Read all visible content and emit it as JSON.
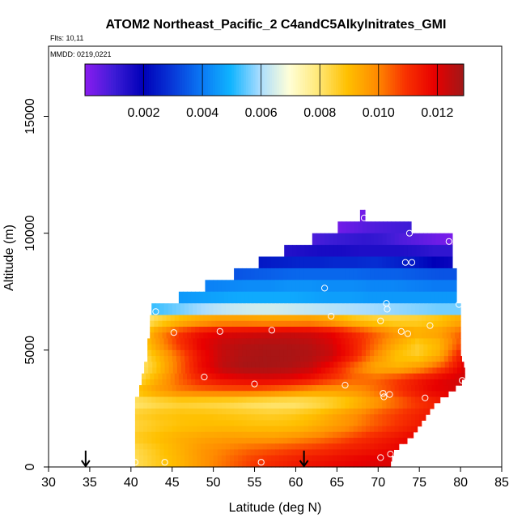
{
  "chart_data": {
    "type": "heatmap",
    "title": "ATOM2 Northeast_Pacific_2 C4andC5Alkylnitrates_GMI",
    "flights_note": "Flts: 10,11",
    "date_note": "MMDD: 0219,0221",
    "xlabel": "Latitude (deg N)",
    "ylabel": "Altitude (m)",
    "xlim": [
      30,
      85
    ],
    "ylim": [
      0,
      18000
    ],
    "x_ticks": [
      30,
      35,
      40,
      45,
      50,
      55,
      60,
      65,
      70,
      75,
      80,
      85
    ],
    "y_ticks": [
      0,
      5000,
      10000,
      15000
    ],
    "colorbar": {
      "min": 0.0,
      "max": 0.0129,
      "ticks": [
        "0.002",
        "0.004",
        "0.006",
        "0.008",
        "0.010",
        "0.012"
      ],
      "tick_values": [
        0.002,
        0.004,
        0.006,
        0.008,
        0.01,
        0.012
      ],
      "colors": [
        "#8a1cf0",
        "#3d1cd6",
        "#0000b8",
        "#0838d8",
        "#0a78f4",
        "#10b4ff",
        "#a8dcff",
        "#ffffd8",
        "#ffe878",
        "#ffc000",
        "#ff8c00",
        "#f83200",
        "#e80000",
        "#a01818"
      ]
    },
    "layers": [
      {
        "alt": 10750,
        "lat_start": 67.8,
        "lat_end": 68.4,
        "values": [
          0.0003
        ]
      },
      {
        "alt": 10250,
        "lat_start": 65.1,
        "lat_end": 74.0,
        "values": [
          0.0003,
          0.0005,
          0.0007,
          0.0008,
          0.0009,
          0.001
        ]
      },
      {
        "alt": 9750,
        "lat_start": 62.0,
        "lat_end": 79.0,
        "values": [
          0.0008,
          0.001,
          0.0011,
          0.0012,
          0.0011,
          0.0008,
          0.0006,
          0.0004,
          0.0002
        ]
      },
      {
        "alt": 9250,
        "lat_start": 58.6,
        "lat_end": 79.0,
        "values": [
          0.0014,
          0.0015,
          0.0016,
          0.0016,
          0.0015,
          0.0015,
          0.0015,
          0.0014,
          0.0012,
          0.0012
        ]
      },
      {
        "alt": 8750,
        "lat_start": 55.5,
        "lat_end": 79.0,
        "values": [
          0.0024,
          0.0025,
          0.0026,
          0.0026,
          0.0027,
          0.0027,
          0.0028,
          0.0026,
          0.0024,
          0.002,
          0.0018
        ]
      },
      {
        "alt": 8250,
        "lat_start": 52.5,
        "lat_end": 79.5,
        "values": [
          0.0034,
          0.0035,
          0.0036,
          0.0037,
          0.0037,
          0.0037,
          0.0037,
          0.0036,
          0.0036,
          0.0035,
          0.0034,
          0.0034
        ]
      },
      {
        "alt": 7750,
        "lat_start": 49.0,
        "lat_end": 79.5,
        "values": [
          0.0041,
          0.0042,
          0.0043,
          0.0043,
          0.0044,
          0.0044,
          0.0043,
          0.0043,
          0.0042,
          0.0042,
          0.0041,
          0.004,
          0.004
        ]
      },
      {
        "alt": 7250,
        "lat_start": 45.8,
        "lat_end": 79.5,
        "values": [
          0.0045,
          0.0046,
          0.0047,
          0.0048,
          0.0048,
          0.0048,
          0.0047,
          0.0046,
          0.0046,
          0.0045,
          0.0045,
          0.0045,
          0.0045,
          0.0045
        ]
      },
      {
        "alt": 6750,
        "lat_start": 42.5,
        "lat_end": 80.0,
        "values": [
          0.0052,
          0.0055,
          0.0058,
          0.0061,
          0.0063,
          0.0064,
          0.0064,
          0.0063,
          0.0062,
          0.0061,
          0.006,
          0.0059,
          0.0058,
          0.0057,
          0.0056,
          0.0056
        ]
      }
    ],
    "lower_region": {
      "lat_start": 40.5,
      "band_width_m": 250,
      "top_alt": 6500,
      "rows": [
        {
          "alt_top": 6500,
          "lat_end": 80.0,
          "values": [
            0.0074,
            0.0083,
            0.0089,
            0.0093,
            0.0095,
            0.0095,
            0.0094,
            0.0094,
            0.0095,
            0.0093,
            0.0088,
            0.0085,
            0.0084,
            0.0085,
            0.0088,
            0.0093
          ]
        },
        {
          "alt_top": 6000,
          "lat_end": 80.0,
          "values": [
            0.0082,
            0.0097,
            0.0109,
            0.0116,
            0.012,
            0.0121,
            0.0122,
            0.0123,
            0.0122,
            0.0119,
            0.0112,
            0.0105,
            0.0098,
            0.0094,
            0.0096,
            0.0104
          ]
        },
        {
          "alt_top": 5500,
          "lat_end": 80.0,
          "values": [
            0.0081,
            0.0096,
            0.0109,
            0.0119,
            0.0124,
            0.0126,
            0.0127,
            0.0127,
            0.0126,
            0.0122,
            0.0114,
            0.0104,
            0.0094,
            0.0086,
            0.0091,
            0.0106
          ]
        },
        {
          "alt_top": 5000,
          "lat_end": 80.0,
          "values": [
            0.0078,
            0.009,
            0.0103,
            0.0116,
            0.0124,
            0.0127,
            0.0128,
            0.0128,
            0.0127,
            0.0124,
            0.0114,
            0.01,
            0.0089,
            0.0086,
            0.0093,
            0.0114
          ]
        },
        {
          "alt_top": 4500,
          "lat_end": 80.5,
          "values": [
            0.0076,
            0.0088,
            0.0103,
            0.0117,
            0.0125,
            0.0128,
            0.0128,
            0.0127,
            0.0124,
            0.0115,
            0.0102,
            0.0093,
            0.0092,
            0.0097,
            0.0107,
            0.0121
          ]
        },
        {
          "alt_top": 4000,
          "lat_end": 80.5,
          "values": [
            0.0081,
            0.0093,
            0.0104,
            0.0112,
            0.0117,
            0.0119,
            0.012,
            0.0119,
            0.0115,
            0.0109,
            0.0104,
            0.0104,
            0.0109,
            0.0115,
            0.012,
            0.0123
          ]
        },
        {
          "alt_top": 3500,
          "lat_end": 79.0,
          "values": [
            0.009,
            0.0096,
            0.0101,
            0.0103,
            0.0104,
            0.0104,
            0.0102,
            0.0099,
            0.0096,
            0.0096,
            0.0099,
            0.0105,
            0.0112,
            0.0118,
            0.0121
          ]
        },
        {
          "alt_top": 3000,
          "lat_end": 77.0,
          "values": [
            0.0079,
            0.0082,
            0.0084,
            0.0083,
            0.0082,
            0.008,
            0.0079,
            0.0079,
            0.0082,
            0.0086,
            0.0093,
            0.01,
            0.0107,
            0.0112
          ]
        },
        {
          "alt_top": 2500,
          "lat_end": 76.0,
          "values": [
            0.0086,
            0.0088,
            0.0089,
            0.0089,
            0.0088,
            0.0087,
            0.0086,
            0.0087,
            0.009,
            0.0095,
            0.01,
            0.0106,
            0.011,
            0.0114
          ]
        },
        {
          "alt_top": 2000,
          "lat_end": 75.0,
          "values": [
            0.0084,
            0.0087,
            0.0089,
            0.009,
            0.009,
            0.0089,
            0.0089,
            0.009,
            0.0094,
            0.0098,
            0.0104,
            0.0109,
            0.0114
          ]
        },
        {
          "alt_top": 1500,
          "lat_end": 74.0,
          "values": [
            0.0087,
            0.009,
            0.0093,
            0.0095,
            0.0096,
            0.0096,
            0.0096,
            0.0098,
            0.0101,
            0.0105,
            0.011,
            0.0114,
            0.0118
          ]
        },
        {
          "alt_top": 1000,
          "lat_end": 72.0,
          "values": [
            0.0083,
            0.0088,
            0.0093,
            0.0098,
            0.0101,
            0.0104,
            0.0106,
            0.0108,
            0.011,
            0.0113,
            0.0115,
            0.0118
          ]
        },
        {
          "alt_top": 500,
          "lat_end": 71.5,
          "values": [
            0.0082,
            0.0087,
            0.0092,
            0.0098,
            0.0103,
            0.0108,
            0.0111,
            0.0114,
            0.0116,
            0.0118,
            0.012,
            0.0121
          ]
        }
      ],
      "left_edge_steps": [
        {
          "alt_top": 3000,
          "lat": 40.5
        },
        {
          "alt_top": 3500,
          "lat": 41.0
        },
        {
          "alt_top": 4000,
          "lat": 41.3
        },
        {
          "alt_top": 4500,
          "lat": 41.6
        },
        {
          "alt_top": 5500,
          "lat": 42.0
        },
        {
          "alt_top": 6500,
          "lat": 42.3
        }
      ]
    },
    "points": [
      {
        "lat": 68.3,
        "alt": 10650
      },
      {
        "lat": 73.8,
        "alt": 10000
      },
      {
        "lat": 78.6,
        "alt": 9650
      },
      {
        "lat": 73.3,
        "alt": 8750
      },
      {
        "lat": 74.1,
        "alt": 8750
      },
      {
        "lat": 63.5,
        "alt": 7650
      },
      {
        "lat": 71.0,
        "alt": 7000
      },
      {
        "lat": 43.0,
        "alt": 6650
      },
      {
        "lat": 71.1,
        "alt": 6750
      },
      {
        "lat": 64.3,
        "alt": 6450
      },
      {
        "lat": 70.3,
        "alt": 6250
      },
      {
        "lat": 79.8,
        "alt": 6950
      },
      {
        "lat": 76.3,
        "alt": 6050
      },
      {
        "lat": 45.2,
        "alt": 5750
      },
      {
        "lat": 50.8,
        "alt": 5800
      },
      {
        "lat": 57.1,
        "alt": 5850
      },
      {
        "lat": 72.8,
        "alt": 5800
      },
      {
        "lat": 73.6,
        "alt": 5700
      },
      {
        "lat": 48.9,
        "alt": 3850
      },
      {
        "lat": 55.0,
        "alt": 3550
      },
      {
        "lat": 66.0,
        "alt": 3500
      },
      {
        "lat": 80.2,
        "alt": 3700
      },
      {
        "lat": 70.6,
        "alt": 3150
      },
      {
        "lat": 70.7,
        "alt": 3000
      },
      {
        "lat": 71.4,
        "alt": 3100
      },
      {
        "lat": 75.7,
        "alt": 2950
      },
      {
        "lat": 70.3,
        "alt": 400
      },
      {
        "lat": 40.5,
        "alt": 200
      },
      {
        "lat": 44.1,
        "alt": 200
      },
      {
        "lat": 55.8,
        "alt": 200
      },
      {
        "lat": 71.5,
        "alt": 550
      }
    ],
    "arrows": [
      {
        "lat": 34.5,
        "alt_top": 700,
        "alt_bottom": 0
      },
      {
        "lat": 61.0,
        "alt_top": 700,
        "alt_bottom": 0
      }
    ],
    "grid": false,
    "legend": "colorbar inside top of plot"
  }
}
